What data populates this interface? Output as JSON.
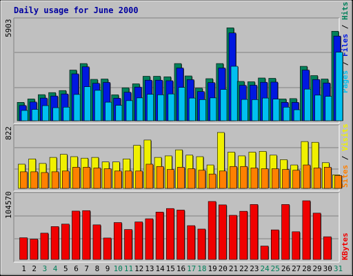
{
  "chart_data": [
    {
      "type": "bar",
      "title": "Daily usage for June 2000",
      "ymax_label": "5903",
      "ylim": [
        0,
        5903
      ],
      "series": [
        {
          "name": "Hits",
          "color": "#00805a",
          "values": [
            1070,
            1270,
            1520,
            1640,
            1760,
            2950,
            3330,
            2410,
            2430,
            1510,
            1920,
            2150,
            2590,
            2590,
            2560,
            3330,
            2610,
            1900,
            2450,
            3330,
            5410,
            2290,
            2270,
            2490,
            2470,
            1270,
            1290,
            3170,
            2630,
            2430,
            5210
          ]
        },
        {
          "name": "Files",
          "color": "#0018e0",
          "values": [
            890,
            1090,
            1320,
            1440,
            1560,
            2730,
            3140,
            2180,
            2230,
            1310,
            1660,
            1960,
            2360,
            2360,
            2330,
            3070,
            2390,
            1700,
            2220,
            3070,
            5110,
            2060,
            2070,
            2240,
            2250,
            1070,
            1070,
            2950,
            2400,
            2200,
            4930
          ]
        },
        {
          "name": "Pages",
          "color": "#00c0f0",
          "values": [
            600,
            660,
            880,
            760,
            790,
            1530,
            1980,
            1770,
            1080,
            900,
            1170,
            1330,
            1540,
            1510,
            1560,
            1940,
            1320,
            1230,
            1330,
            1820,
            3170,
            1240,
            1230,
            1320,
            1260,
            790,
            640,
            1840,
            1490,
            1420,
            3990
          ]
        }
      ]
    },
    {
      "type": "bar",
      "ymax_label": "822",
      "ylim": [
        0,
        822
      ],
      "series": [
        {
          "name": "Visits",
          "color": "#f0f000",
          "values": [
            320,
            390,
            330,
            410,
            450,
            420,
            400,
            410,
            350,
            350,
            390,
            570,
            640,
            410,
            430,
            510,
            440,
            420,
            310,
            740,
            480,
            430,
            480,
            490,
            440,
            380,
            310,
            620,
            610,
            340,
            180
          ]
        },
        {
          "name": "Sites",
          "color": "#ff8000",
          "values": [
            220,
            220,
            210,
            220,
            230,
            280,
            280,
            270,
            260,
            230,
            230,
            230,
            320,
            290,
            250,
            280,
            260,
            240,
            190,
            230,
            290,
            290,
            270,
            260,
            260,
            250,
            240,
            310,
            270,
            280,
            170
          ]
        }
      ]
    },
    {
      "type": "bar",
      "ymax_label": "104570",
      "ylim": [
        0,
        104570
      ],
      "series": [
        {
          "name": "KBytes",
          "color": "#f00000",
          "values": [
            35000,
            32700,
            42400,
            53000,
            57000,
            78000,
            78700,
            55800,
            34600,
            59500,
            48300,
            60500,
            65600,
            76400,
            82100,
            79600,
            54500,
            49000,
            93500,
            88000,
            71200,
            77700,
            88600,
            21600,
            47700,
            88600,
            44700,
            94600,
            74700,
            36600,
            0
          ]
        }
      ]
    }
  ],
  "x_axis": {
    "labels": [
      "1",
      "2",
      "3",
      "4",
      "5",
      "6",
      "7",
      "8",
      "9",
      "10",
      "11",
      "12",
      "13",
      "14",
      "15",
      "16",
      "17",
      "18",
      "19",
      "20",
      "21",
      "22",
      "23",
      "24",
      "25",
      "26",
      "27",
      "28",
      "29",
      "30",
      "31"
    ],
    "weekend_days": [
      3,
      4,
      10,
      11,
      17,
      18,
      24,
      25,
      31
    ],
    "weekday_color": "#000000",
    "weekend_color": "#00805a"
  },
  "right_labels": {
    "top": [
      {
        "text": "Pages",
        "color": "#00c0f0"
      },
      {
        "text": " / ",
        "color": "#000000"
      },
      {
        "text": "Files",
        "color": "#0018e0"
      },
      {
        "text": " / ",
        "color": "#000000"
      },
      {
        "text": "Hits",
        "color": "#00805a"
      }
    ],
    "middle": [
      {
        "text": "Sites",
        "color": "#ff8000"
      },
      {
        "text": " / ",
        "color": "#000000"
      },
      {
        "text": "Visits",
        "color": "#f0f000"
      }
    ],
    "bottom": [
      {
        "text": "KBytes",
        "color": "#f00000"
      }
    ]
  },
  "colors": {
    "background": "#c0c0c0",
    "title": "#0000a0",
    "gridline": "#808080"
  }
}
